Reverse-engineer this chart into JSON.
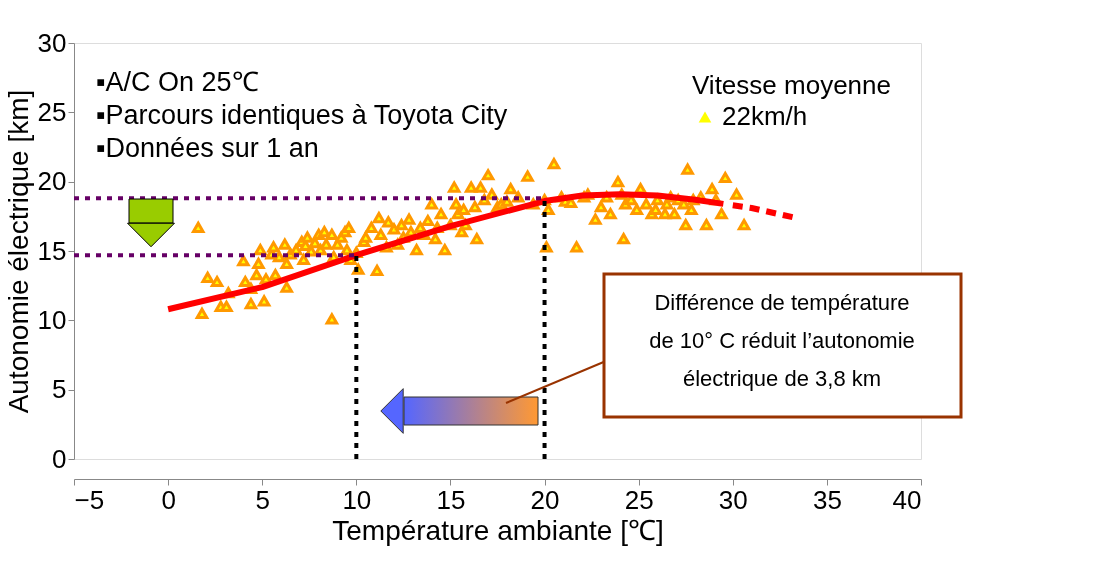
{
  "chart_data": {
    "type": "scatter",
    "xlabel": "Température ambiante [℃]",
    "ylabel": "Autonomie électrique [km]",
    "xlim": [
      -5,
      40
    ],
    "xticks": [
      -5,
      0,
      5,
      10,
      15,
      20,
      25,
      30,
      35,
      40
    ],
    "ylim": [
      0,
      30
    ],
    "yticks": [
      0,
      5,
      10,
      15,
      20,
      25,
      30
    ],
    "grid": false,
    "legend": "top right",
    "legend_title": "Vitesse moyenne",
    "annotations": [
      "▪A/C On 25℃",
      "▪Parcours identiques à Toyota City",
      "▪Données sur 1 an",
      "Différence de température\nde 10°  C réduit l’autonomie\nélectrique de 3,8 km"
    ],
    "series": [
      {
        "name": "22km/h",
        "marker": "triangle",
        "color": "#ff9900",
        "x": [
          1.6,
          1.8,
          2.1,
          2.6,
          2.8,
          3.1,
          3.2,
          4.0,
          4.1,
          4.4,
          4.4,
          4.7,
          4.8,
          4.9,
          5.1,
          5.2,
          5.5,
          5.6,
          5.7,
          5.9,
          6.2,
          6.3,
          6.3,
          6.5,
          6.8,
          7.1,
          7.2,
          7.3,
          7.4,
          7.6,
          7.8,
          8.0,
          8.1,
          8.3,
          8.4,
          8.7,
          8.7,
          8.8,
          9.0,
          9.2,
          9.4,
          9.5,
          9.6,
          9.7,
          10.0,
          10.1,
          10.4,
          10.5,
          10.8,
          11.1,
          11.2,
          11.3,
          11.6,
          11.7,
          12.0,
          12.2,
          12.4,
          12.5,
          12.8,
          12.9,
          13.2,
          13.4,
          13.6,
          13.8,
          14.0,
          14.2,
          14.3,
          14.5,
          14.7,
          15.0,
          15.2,
          15.3,
          15.4,
          15.6,
          15.7,
          15.8,
          16.1,
          16.3,
          16.4,
          16.6,
          16.8,
          17.0,
          17.2,
          17.5,
          17.7,
          18.0,
          18.2,
          18.6,
          19.1,
          19.4,
          20.0,
          20.1,
          20.2,
          20.5,
          20.9,
          21.1,
          21.4,
          21.7,
          22.1,
          22.3,
          22.7,
          23.0,
          23.3,
          23.5,
          23.9,
          24.1,
          24.3,
          24.2,
          24.6,
          24.9,
          25.1,
          25.4,
          25.7,
          25.9,
          26.0,
          26.4,
          26.5,
          26.7,
          26.9,
          27.1,
          27.4,
          27.5,
          27.6,
          27.8,
          27.9,
          28.3,
          28.6,
          28.9,
          29.1,
          29.4,
          29.6,
          30.2,
          30.6
        ],
        "values": [
          16.7,
          10.5,
          13.1,
          12.8,
          11.0,
          11.0,
          12.0,
          14.3,
          12.8,
          12.3,
          11.2,
          13.3,
          14.1,
          15.1,
          11.4,
          13.0,
          14.8,
          15.3,
          13.3,
          14.6,
          15.5,
          14.1,
          12.4,
          14.8,
          15.1,
          15.7,
          14.4,
          15.4,
          16.0,
          15.0,
          15.6,
          16.2,
          15.1,
          16.4,
          15.5,
          16.2,
          10.1,
          14.6,
          15.5,
          16.0,
          16.4,
          15.1,
          16.7,
          14.4,
          14.9,
          13.7,
          15.7,
          16.0,
          16.7,
          13.6,
          17.4,
          16.2,
          15.3,
          17.1,
          16.6,
          15.5,
          16.9,
          16.0,
          17.3,
          16.4,
          15.1,
          16.7,
          16.2,
          17.2,
          18.4,
          15.9,
          16.7,
          17.7,
          15.1,
          16.9,
          19.6,
          18.4,
          17.7,
          16.4,
          18.0,
          16.9,
          19.6,
          18.2,
          15.9,
          19.6,
          18.7,
          20.5,
          19.1,
          18.2,
          18.4,
          18.6,
          19.5,
          18.9,
          20.4,
          18.4,
          18.7,
          15.3,
          18.0,
          21.3,
          18.9,
          18.6,
          18.5,
          15.3,
          18.9,
          19.1,
          17.3,
          18.2,
          18.9,
          17.7,
          20.0,
          19.1,
          18.4,
          15.9,
          18.7,
          18.0,
          19.5,
          18.4,
          17.7,
          18.0,
          18.7,
          17.7,
          18.4,
          18.9,
          17.7,
          18.7,
          18.4,
          16.9,
          20.9,
          18.0,
          18.7,
          18.9,
          16.9,
          19.5,
          18.7,
          17.7,
          20.3,
          19.1,
          16.9
        ]
      },
      {
        "type": "line",
        "color": "#ff0000",
        "line_style": "solid",
        "x": [
          0,
          5,
          10,
          15,
          20,
          22,
          24,
          26,
          28,
          29.5
        ],
        "values": [
          10.8,
          12.4,
          14.7,
          16.8,
          18.6,
          19.0,
          19.1,
          19.0,
          18.7,
          18.4
        ]
      },
      {
        "type": "line",
        "color": "#ff0000",
        "line_style": "dashed",
        "x": [
          30,
          31,
          33.3
        ],
        "values": [
          18.3,
          18.1,
          17.4
        ]
      },
      {
        "type": "line",
        "color": "#660066",
        "line_style": "dotted",
        "x": [
          -5,
          20
        ],
        "values": [
          18.8,
          18.8
        ]
      },
      {
        "type": "line",
        "color": "#660066",
        "line_style": "dotted",
        "x": [
          -5,
          10
        ],
        "values": [
          14.7,
          14.7
        ]
      },
      {
        "type": "line",
        "color": "#000000",
        "line_style": "dotted",
        "x": [
          10,
          10
        ],
        "values": [
          0,
          14.7
        ]
      },
      {
        "type": "line",
        "color": "#000000",
        "line_style": "dotted",
        "x": [
          20,
          20
        ],
        "values": [
          0,
          18.8
        ]
      }
    ]
  }
}
